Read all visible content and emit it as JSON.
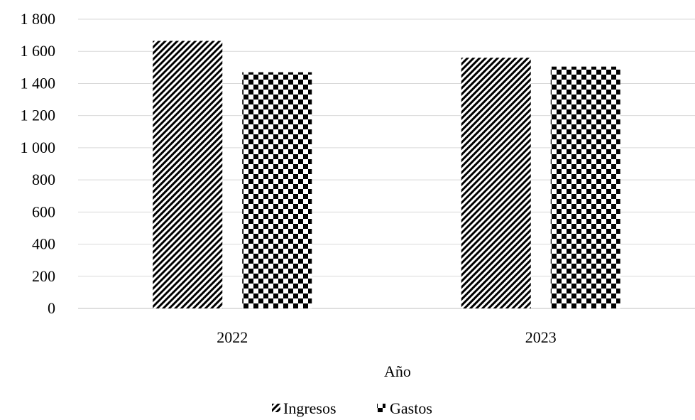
{
  "chart_data": {
    "type": "bar",
    "title": "",
    "xlabel": "Año",
    "ylabel": "",
    "ylim": [
      0,
      1800
    ],
    "y_ticks": [
      0,
      200,
      400,
      600,
      800,
      1000,
      1200,
      1400,
      1600,
      1800
    ],
    "y_tick_labels": [
      "0",
      "200",
      "400",
      "600",
      "800",
      "1 000",
      "1 200",
      "1 400",
      "1 600",
      "1 800"
    ],
    "categories": [
      "2022",
      "2023"
    ],
    "series": [
      {
        "name": "Ingresos",
        "values": [
          1665,
          1560
        ],
        "pattern": "diagonal-stripes"
      },
      {
        "name": "Gastos",
        "values": [
          1470,
          1505
        ],
        "pattern": "checkerboard"
      }
    ],
    "grid": "horizontal",
    "legend_position": "bottom",
    "colors": {
      "gridline": "#d9d9d9",
      "ink": "#000000",
      "background": "#ffffff"
    }
  }
}
